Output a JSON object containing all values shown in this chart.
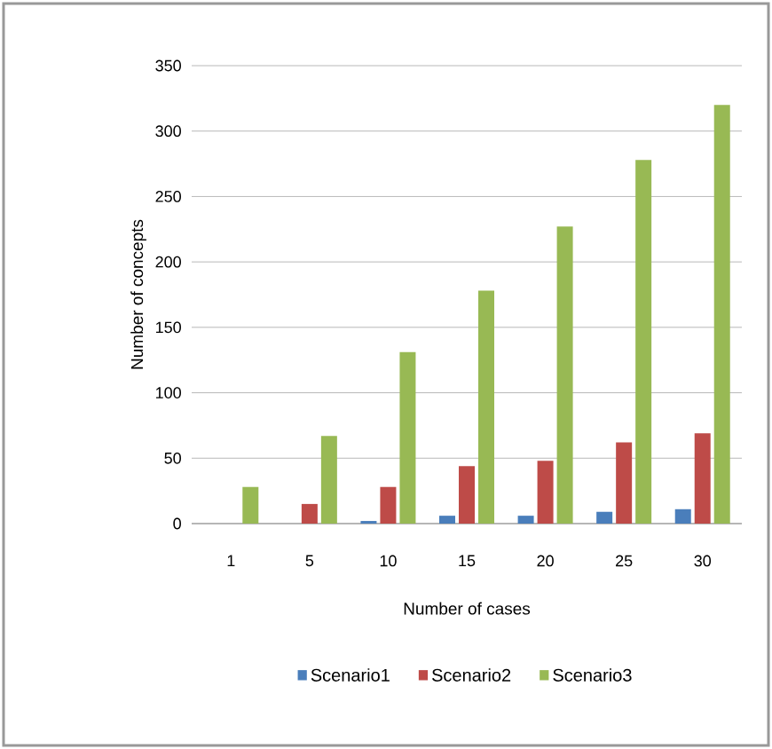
{
  "chart_data": {
    "type": "bar",
    "xlabel": "Number of cases",
    "ylabel": "Number of concepts",
    "categories": [
      "1",
      "5",
      "10",
      "15",
      "20",
      "25",
      "30"
    ],
    "series": [
      {
        "name": "Scenario1",
        "color": "#4a7ebb",
        "values": [
          0,
          0,
          2,
          6,
          6,
          9,
          11
        ]
      },
      {
        "name": "Scenario2",
        "color": "#be4b48",
        "values": [
          0,
          15,
          28,
          44,
          48,
          62,
          69
        ]
      },
      {
        "name": "Scenario3",
        "color": "#98b954",
        "values": [
          28,
          67,
          131,
          178,
          227,
          278,
          320
        ]
      }
    ],
    "ylim": [
      0,
      350
    ],
    "yticks": [
      0,
      50,
      100,
      150,
      200,
      250,
      300,
      350
    ],
    "grid": "y",
    "legend": "bottom"
  }
}
